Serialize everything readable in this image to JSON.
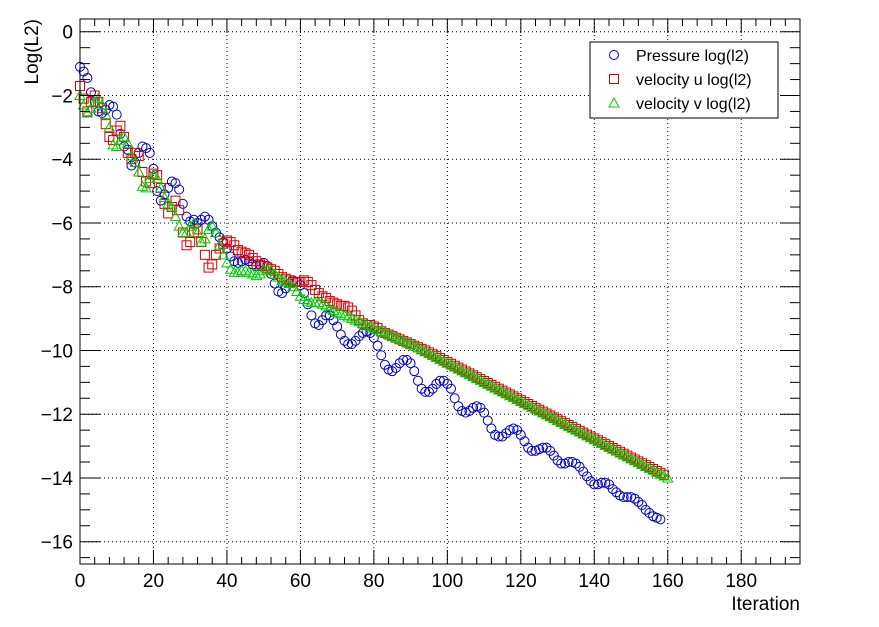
{
  "chart_data": {
    "type": "scatter",
    "title": "",
    "xlabel": "Iteration",
    "ylabel": "Log(L2)",
    "xlim": [
      0,
      196
    ],
    "ylim": [
      -16.7,
      0.4
    ],
    "x_ticks": [
      0,
      20,
      40,
      60,
      80,
      100,
      120,
      140,
      160,
      180
    ],
    "y_ticks": [
      0,
      -2,
      -4,
      -6,
      -8,
      -10,
      -12,
      -14,
      -16
    ],
    "grid": true,
    "legend_position": "top-right",
    "series": [
      {
        "name": "Pressure log(l2)",
        "marker": "circle",
        "color": "#0000cc",
        "x_start": 0,
        "x_step": 1,
        "y": [
          -1.1,
          -1.25,
          -1.45,
          -1.9,
          -2.2,
          -2.5,
          -2.55,
          -2.45,
          -2.3,
          -2.35,
          -2.6,
          -3.2,
          -3.6,
          -3.7,
          -4.2,
          -4.1,
          -3.8,
          -3.6,
          -3.65,
          -3.8,
          -4.3,
          -5.0,
          -5.3,
          -5.1,
          -4.9,
          -4.7,
          -4.75,
          -4.95,
          -5.4,
          -5.8,
          -5.95,
          -5.9,
          -6.0,
          -5.9,
          -5.8,
          -5.9,
          -6.1,
          -6.3,
          -6.45,
          -6.6,
          -6.8,
          -7.05,
          -7.2,
          -7.25,
          -7.2,
          -7.15,
          -7.2,
          -7.3,
          -7.35,
          -7.3,
          -7.25,
          -7.35,
          -7.6,
          -7.9,
          -8.15,
          -8.2,
          -8.05,
          -7.9,
          -7.8,
          -7.85,
          -7.95,
          -8.2,
          -8.55,
          -8.9,
          -9.15,
          -9.2,
          -9.05,
          -8.9,
          -8.9,
          -9.05,
          -9.25,
          -9.5,
          -9.7,
          -9.8,
          -9.8,
          -9.7,
          -9.55,
          -9.45,
          -9.4,
          -9.45,
          -9.6,
          -9.85,
          -10.15,
          -10.45,
          -10.6,
          -10.65,
          -10.55,
          -10.4,
          -10.3,
          -10.3,
          -10.4,
          -10.65,
          -10.95,
          -11.2,
          -11.3,
          -11.3,
          -11.2,
          -11.05,
          -10.95,
          -10.95,
          -11.05,
          -11.2,
          -11.5,
          -11.75,
          -11.9,
          -11.95,
          -11.9,
          -11.8,
          -11.75,
          -11.8,
          -11.95,
          -12.2,
          -12.45,
          -12.65,
          -12.7,
          -12.7,
          -12.6,
          -12.5,
          -12.45,
          -12.5,
          -12.65,
          -12.85,
          -13.05,
          -13.15,
          -13.15,
          -13.1,
          -13.05,
          -13.05,
          -13.15,
          -13.3,
          -13.45,
          -13.55,
          -13.55,
          -13.5,
          -13.5,
          -13.55,
          -13.65,
          -13.8,
          -13.95,
          -14.1,
          -14.2,
          -14.2,
          -14.15,
          -14.15,
          -14.2,
          -14.35,
          -14.45,
          -14.55,
          -14.6,
          -14.6,
          -14.6,
          -14.65,
          -14.75,
          -14.85,
          -15.0,
          -15.1,
          -15.2,
          -15.25,
          -15.3
        ]
      },
      {
        "name": "velocity u log(l2)",
        "marker": "square",
        "color": "#dd0000",
        "x_start": 0,
        "x_step": 1,
        "y": [
          -1.7,
          -2.1,
          -2.5,
          -2.2,
          -2.0,
          -2.2,
          -2.4,
          -2.9,
          -3.3,
          -3.4,
          -3.1,
          -2.95,
          -3.3,
          -3.8,
          -4.0,
          -3.8,
          -3.9,
          -4.4,
          -4.7,
          -4.75,
          -4.45,
          -4.5,
          -4.9,
          -5.4,
          -5.7,
          -5.5,
          -5.3,
          -5.6,
          -6.3,
          -6.7,
          -6.6,
          -6.3,
          -6.2,
          -6.6,
          -7.0,
          -7.4,
          -7.3,
          -7.0,
          -6.8,
          -6.65,
          -6.55,
          -6.6,
          -6.7,
          -6.85,
          -6.9,
          -6.95,
          -7.0,
          -7.1,
          -7.2,
          -7.3,
          -7.35,
          -7.4,
          -7.45,
          -7.5,
          -7.6,
          -7.7,
          -7.75,
          -7.8,
          -7.85,
          -7.85,
          -7.85,
          -7.8,
          -7.85,
          -7.95,
          -8.1,
          -8.2,
          -8.3,
          -8.35,
          -8.45,
          -8.5,
          -8.55,
          -8.6,
          -8.6,
          -8.65,
          -8.75,
          -8.9,
          -9.05,
          -9.15,
          -9.2,
          -9.2,
          -9.25,
          -9.3,
          -9.4,
          -9.45,
          -9.5,
          -9.55,
          -9.6,
          -9.65,
          -9.7,
          -9.75,
          -9.8,
          -9.85,
          -9.9,
          -9.95,
          -10.0,
          -10.06,
          -10.12,
          -10.18,
          -10.24,
          -10.3,
          -10.36,
          -10.42,
          -10.48,
          -10.54,
          -10.6,
          -10.66,
          -10.72,
          -10.78,
          -10.84,
          -10.9,
          -10.96,
          -11.02,
          -11.08,
          -11.14,
          -11.2,
          -11.26,
          -11.32,
          -11.38,
          -11.44,
          -11.5,
          -11.56,
          -11.62,
          -11.68,
          -11.74,
          -11.8,
          -11.86,
          -11.92,
          -11.98,
          -12.04,
          -12.1,
          -12.16,
          -12.22,
          -12.28,
          -12.34,
          -12.4,
          -12.46,
          -12.52,
          -12.58,
          -12.64,
          -12.7,
          -12.76,
          -12.82,
          -12.88,
          -12.94,
          -13.0,
          -13.06,
          -13.12,
          -13.18,
          -13.24,
          -13.3,
          -13.36,
          -13.42,
          -13.48,
          -13.54,
          -13.6,
          -13.66,
          -13.72,
          -13.78,
          -13.84,
          -13.9
        ]
      },
      {
        "name": "velocity v log(l2)",
        "marker": "triangle",
        "color": "#00cc00",
        "x_start": 0,
        "x_step": 1,
        "y": [
          -2.0,
          -2.3,
          -2.55,
          -2.4,
          -2.2,
          -2.1,
          -2.3,
          -2.6,
          -3.0,
          -3.55,
          -3.6,
          -3.4,
          -3.3,
          -3.5,
          -3.9,
          -4.1,
          -4.4,
          -4.85,
          -4.9,
          -4.6,
          -4.5,
          -4.6,
          -4.9,
          -5.2,
          -5.4,
          -5.5,
          -5.8,
          -6.1,
          -6.3,
          -6.3,
          -6.1,
          -6.0,
          -6.3,
          -6.6,
          -6.5,
          -6.2,
          -6.1,
          -6.3,
          -6.7,
          -7.0,
          -7.25,
          -7.45,
          -7.55,
          -7.55,
          -7.5,
          -7.5,
          -7.55,
          -7.6,
          -7.65,
          -7.6,
          -7.5,
          -7.45,
          -7.5,
          -7.6,
          -7.7,
          -7.8,
          -7.85,
          -7.9,
          -8.0,
          -8.15,
          -8.3,
          -8.4,
          -8.45,
          -8.5,
          -8.5,
          -8.5,
          -8.55,
          -8.6,
          -8.7,
          -8.75,
          -8.8,
          -8.85,
          -8.9,
          -8.95,
          -9.0,
          -9.05,
          -9.1,
          -9.15,
          -9.2,
          -9.25,
          -9.3,
          -9.35,
          -9.4,
          -9.45,
          -9.5,
          -9.55,
          -9.6,
          -9.65,
          -9.7,
          -9.75,
          -9.8,
          -9.86,
          -9.92,
          -9.98,
          -10.04,
          -10.1,
          -10.16,
          -10.22,
          -10.28,
          -10.34,
          -10.4,
          -10.46,
          -10.52,
          -10.58,
          -10.64,
          -10.7,
          -10.76,
          -10.82,
          -10.88,
          -10.94,
          -11.0,
          -11.06,
          -11.12,
          -11.18,
          -11.24,
          -11.3,
          -11.36,
          -11.42,
          -11.48,
          -11.54,
          -11.6,
          -11.66,
          -11.72,
          -11.78,
          -11.84,
          -11.9,
          -11.96,
          -12.02,
          -12.08,
          -12.14,
          -12.2,
          -12.26,
          -12.32,
          -12.38,
          -12.44,
          -12.5,
          -12.56,
          -12.62,
          -12.68,
          -12.74,
          -12.8,
          -12.86,
          -12.92,
          -12.98,
          -13.04,
          -13.1,
          -13.16,
          -13.22,
          -13.28,
          -13.34,
          -13.4,
          -13.46,
          -13.52,
          -13.58,
          -13.64,
          -13.7,
          -13.76,
          -13.82,
          -13.88,
          -13.94,
          -14.0
        ]
      }
    ]
  }
}
